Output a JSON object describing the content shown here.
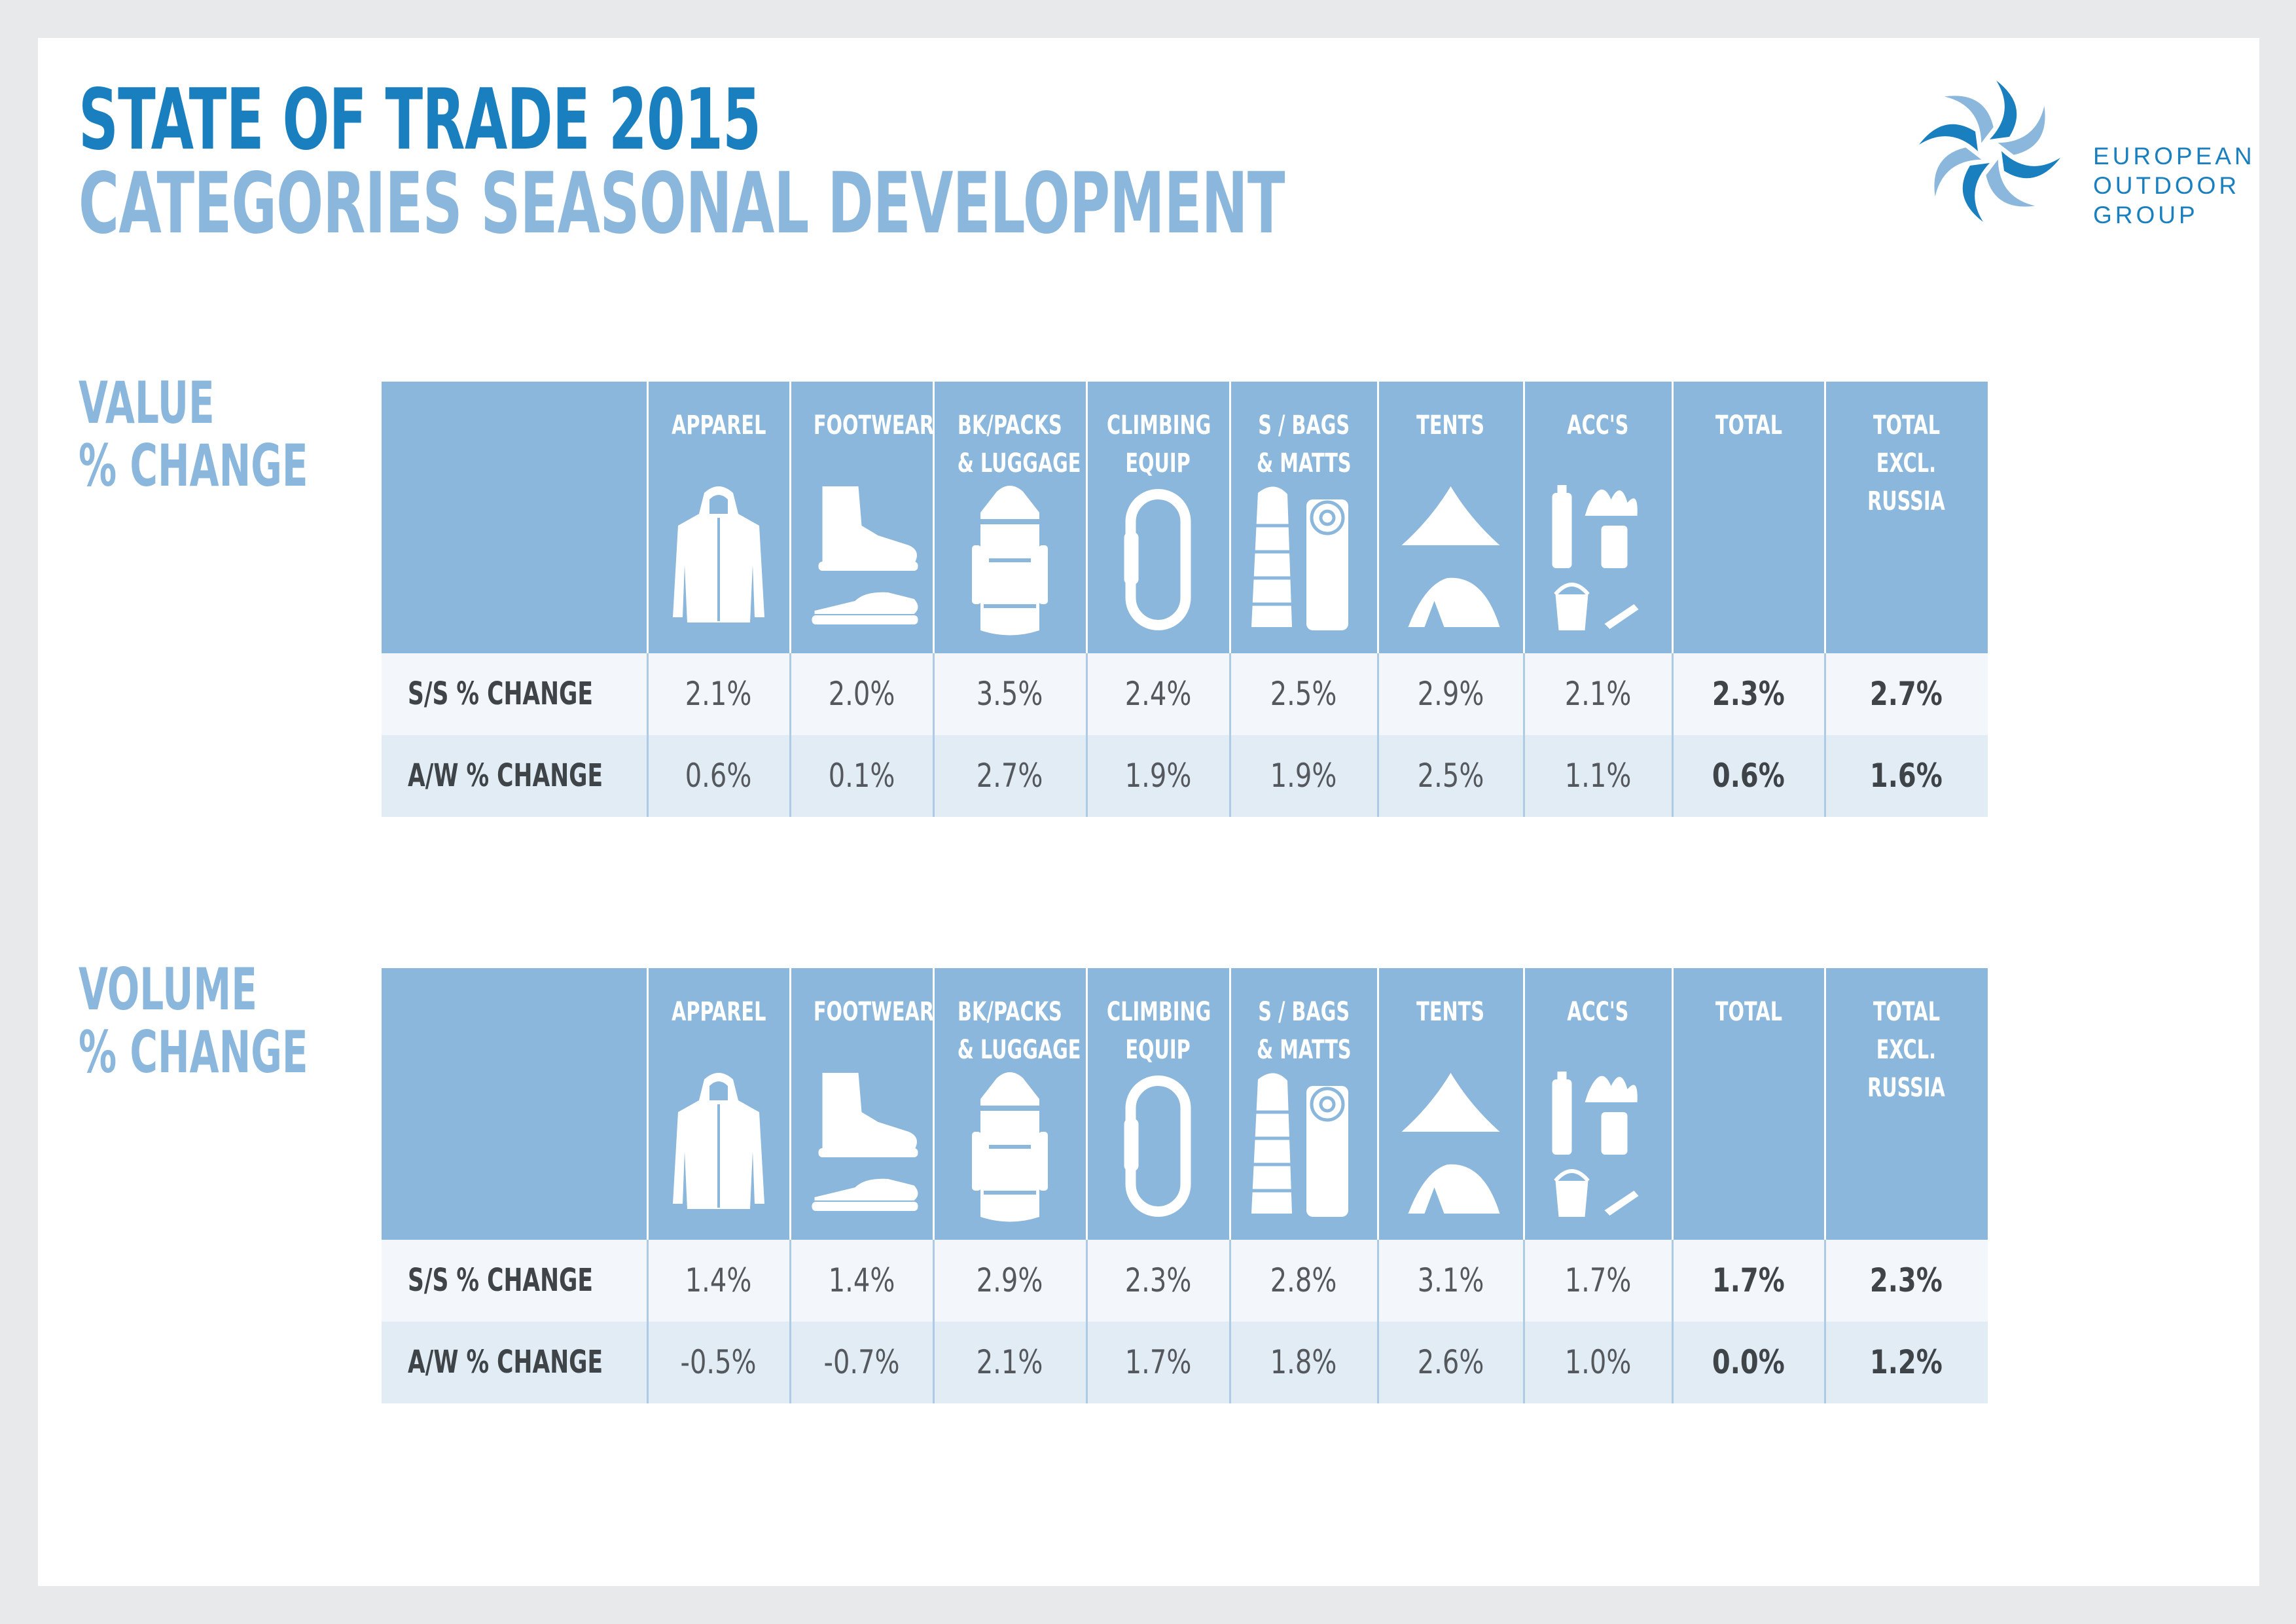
{
  "title": "STATE OF TRADE 2015",
  "subtitle": "CATEGORIES SEASONAL DEVELOPMENT",
  "logo": {
    "lines": [
      "EUROPEAN",
      "OUTDOOR",
      "GROUP"
    ],
    "icon": "pinwheel-logo-icon",
    "colors": [
      "#1a7fbf",
      "#8ab7db"
    ]
  },
  "colors": {
    "title": "#1a7fbf",
    "accent": "#8ab7db",
    "header_bg": "#8ab7db",
    "row_light": "#f3f6fa",
    "row_dark": "#e2ecf5"
  },
  "columns": [
    {
      "label_lines": [
        "APPAREL"
      ],
      "icon": "jacket-icon"
    },
    {
      "label_lines": [
        "FOOTWEAR"
      ],
      "icon": "boots-icon"
    },
    {
      "label_lines": [
        "BK/PACKS",
        "& LUGGAGE"
      ],
      "icon": "backpack-icon"
    },
    {
      "label_lines": [
        "CLIMBING",
        "EQUIP"
      ],
      "icon": "carabiner-icon"
    },
    {
      "label_lines": [
        "S / BAGS",
        "& MATTS"
      ],
      "icon": "sleeping-bag-icon"
    },
    {
      "label_lines": [
        "TENTS"
      ],
      "icon": "tent-icon"
    },
    {
      "label_lines": [
        "ACC'S"
      ],
      "icon": "accessories-icon"
    },
    {
      "label_lines": [
        "TOTAL"
      ],
      "icon": ""
    },
    {
      "label_lines": [
        "TOTAL",
        "EXCL.",
        "RUSSIA"
      ],
      "icon": ""
    }
  ],
  "chart_data": [
    {
      "type": "table",
      "title_lines": [
        "VALUE",
        "% CHANGE"
      ],
      "columns": [
        "APPAREL",
        "FOOTWEAR",
        "BK/PACKS & LUGGAGE",
        "CLIMBING EQUIP",
        "S / BAGS & MATTS",
        "TENTS",
        "ACC'S",
        "TOTAL",
        "TOTAL EXCL. RUSSIA"
      ],
      "rows": [
        {
          "label": "S/S % CHANGE",
          "values": [
            "2.1%",
            "2.0%",
            "3.5%",
            "2.4%",
            "2.5%",
            "2.9%",
            "2.1%",
            "2.3%",
            "2.7%"
          ]
        },
        {
          "label": "A/W % CHANGE",
          "values": [
            "0.6%",
            "0.1%",
            "2.7%",
            "1.9%",
            "1.9%",
            "2.5%",
            "1.1%",
            "0.6%",
            "1.6%"
          ]
        }
      ]
    },
    {
      "type": "table",
      "title_lines": [
        "VOLUME",
        "% CHANGE"
      ],
      "columns": [
        "APPAREL",
        "FOOTWEAR",
        "BK/PACKS & LUGGAGE",
        "CLIMBING EQUIP",
        "S / BAGS & MATTS",
        "TENTS",
        "ACC'S",
        "TOTAL",
        "TOTAL EXCL. RUSSIA"
      ],
      "rows": [
        {
          "label": "S/S % CHANGE",
          "values": [
            "1.4%",
            "1.4%",
            "2.9%",
            "2.3%",
            "2.8%",
            "3.1%",
            "1.7%",
            "1.7%",
            "2.3%"
          ]
        },
        {
          "label": "A/W % CHANGE",
          "values": [
            "-0.5%",
            "-0.7%",
            "2.1%",
            "1.7%",
            "1.8%",
            "2.6%",
            "1.0%",
            "0.0%",
            "1.2%"
          ]
        }
      ]
    }
  ]
}
